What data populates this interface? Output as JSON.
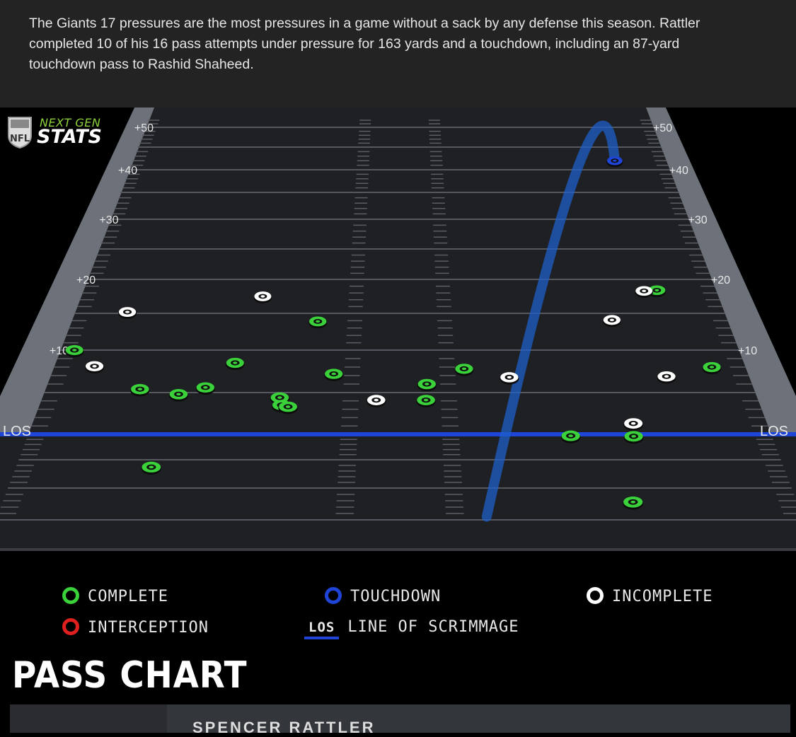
{
  "caption": "The Giants 17 pressures are the most pressures in a game without a sack by any defense this season. Rattler completed 10 of his 16 pass attempts under pressure for 163 yards and a touchdown, including an 87-yard touchdown pass to Rashid Shaheed.",
  "logo": {
    "line1": "NEXT GEN",
    "line2": "STATS",
    "shield": "NFL"
  },
  "title": "PASS CHART",
  "player_panel": {
    "name": "SPENCER RATTLER"
  },
  "legend": {
    "complete": "COMPLETE",
    "touchdown": "TOUCHDOWN",
    "incomplete": "INCOMPLETE",
    "interception": "INTERCEPTION",
    "los_key": "LOS",
    "los": "LINE OF SCRIMMAGE"
  },
  "colors": {
    "complete": "#3bd13b",
    "touchdown": "#1f45d8",
    "incomplete": "#ffffff",
    "interception": "#e0201f",
    "los": "#1f45d8"
  },
  "chart_data": {
    "type": "scatter",
    "title": "PASS CHART",
    "x_label": "",
    "y_label": "",
    "x_units": "yards from left sideline (estimated)",
    "y_units": "yards downfield from LOS",
    "xlim": [
      0,
      53.3
    ],
    "ylim": [
      -15,
      50
    ],
    "y_tick_labels": [
      "+10",
      "+20",
      "+30",
      "+40",
      "+50"
    ],
    "los_label": "LOS",
    "series": [
      {
        "name": "COMPLETE",
        "points": [
          [
            1.1,
            10
          ],
          [
            7.1,
            5.4
          ],
          [
            10.1,
            4.8
          ],
          [
            12.0,
            5.6
          ],
          [
            13.9,
            8.5
          ],
          [
            20.0,
            13.9
          ],
          [
            17.7,
            4.4
          ],
          [
            17.9,
            3.5
          ],
          [
            18.4,
            3.3
          ],
          [
            21.6,
            7.2
          ],
          [
            28.7,
            6.0
          ],
          [
            28.6,
            4.1
          ],
          [
            31.6,
            7.8
          ],
          [
            48.3,
            18.4
          ],
          [
            50.7,
            8.0
          ],
          [
            38.9,
            -0.3
          ],
          [
            43.4,
            -0.4
          ],
          [
            9.4,
            -6.3
          ],
          [
            42.3,
            -12.2
          ]
        ]
      },
      {
        "name": "INCOMPLETE",
        "points": [
          [
            4.3,
            15.2
          ],
          [
            15.2,
            17.5
          ],
          [
            3.1,
            8.1
          ],
          [
            24.9,
            4.1
          ],
          [
            35.0,
            6.8
          ],
          [
            47.2,
            18.3
          ],
          [
            43.9,
            14.1
          ],
          [
            47.0,
            6.9
          ],
          [
            43.6,
            1.3
          ]
        ]
      },
      {
        "name": "TOUCHDOWN",
        "points": [
          [
            48.1,
            42
          ]
        ],
        "throw_origin": [
          32.4,
          -14.5
        ]
      }
    ]
  }
}
